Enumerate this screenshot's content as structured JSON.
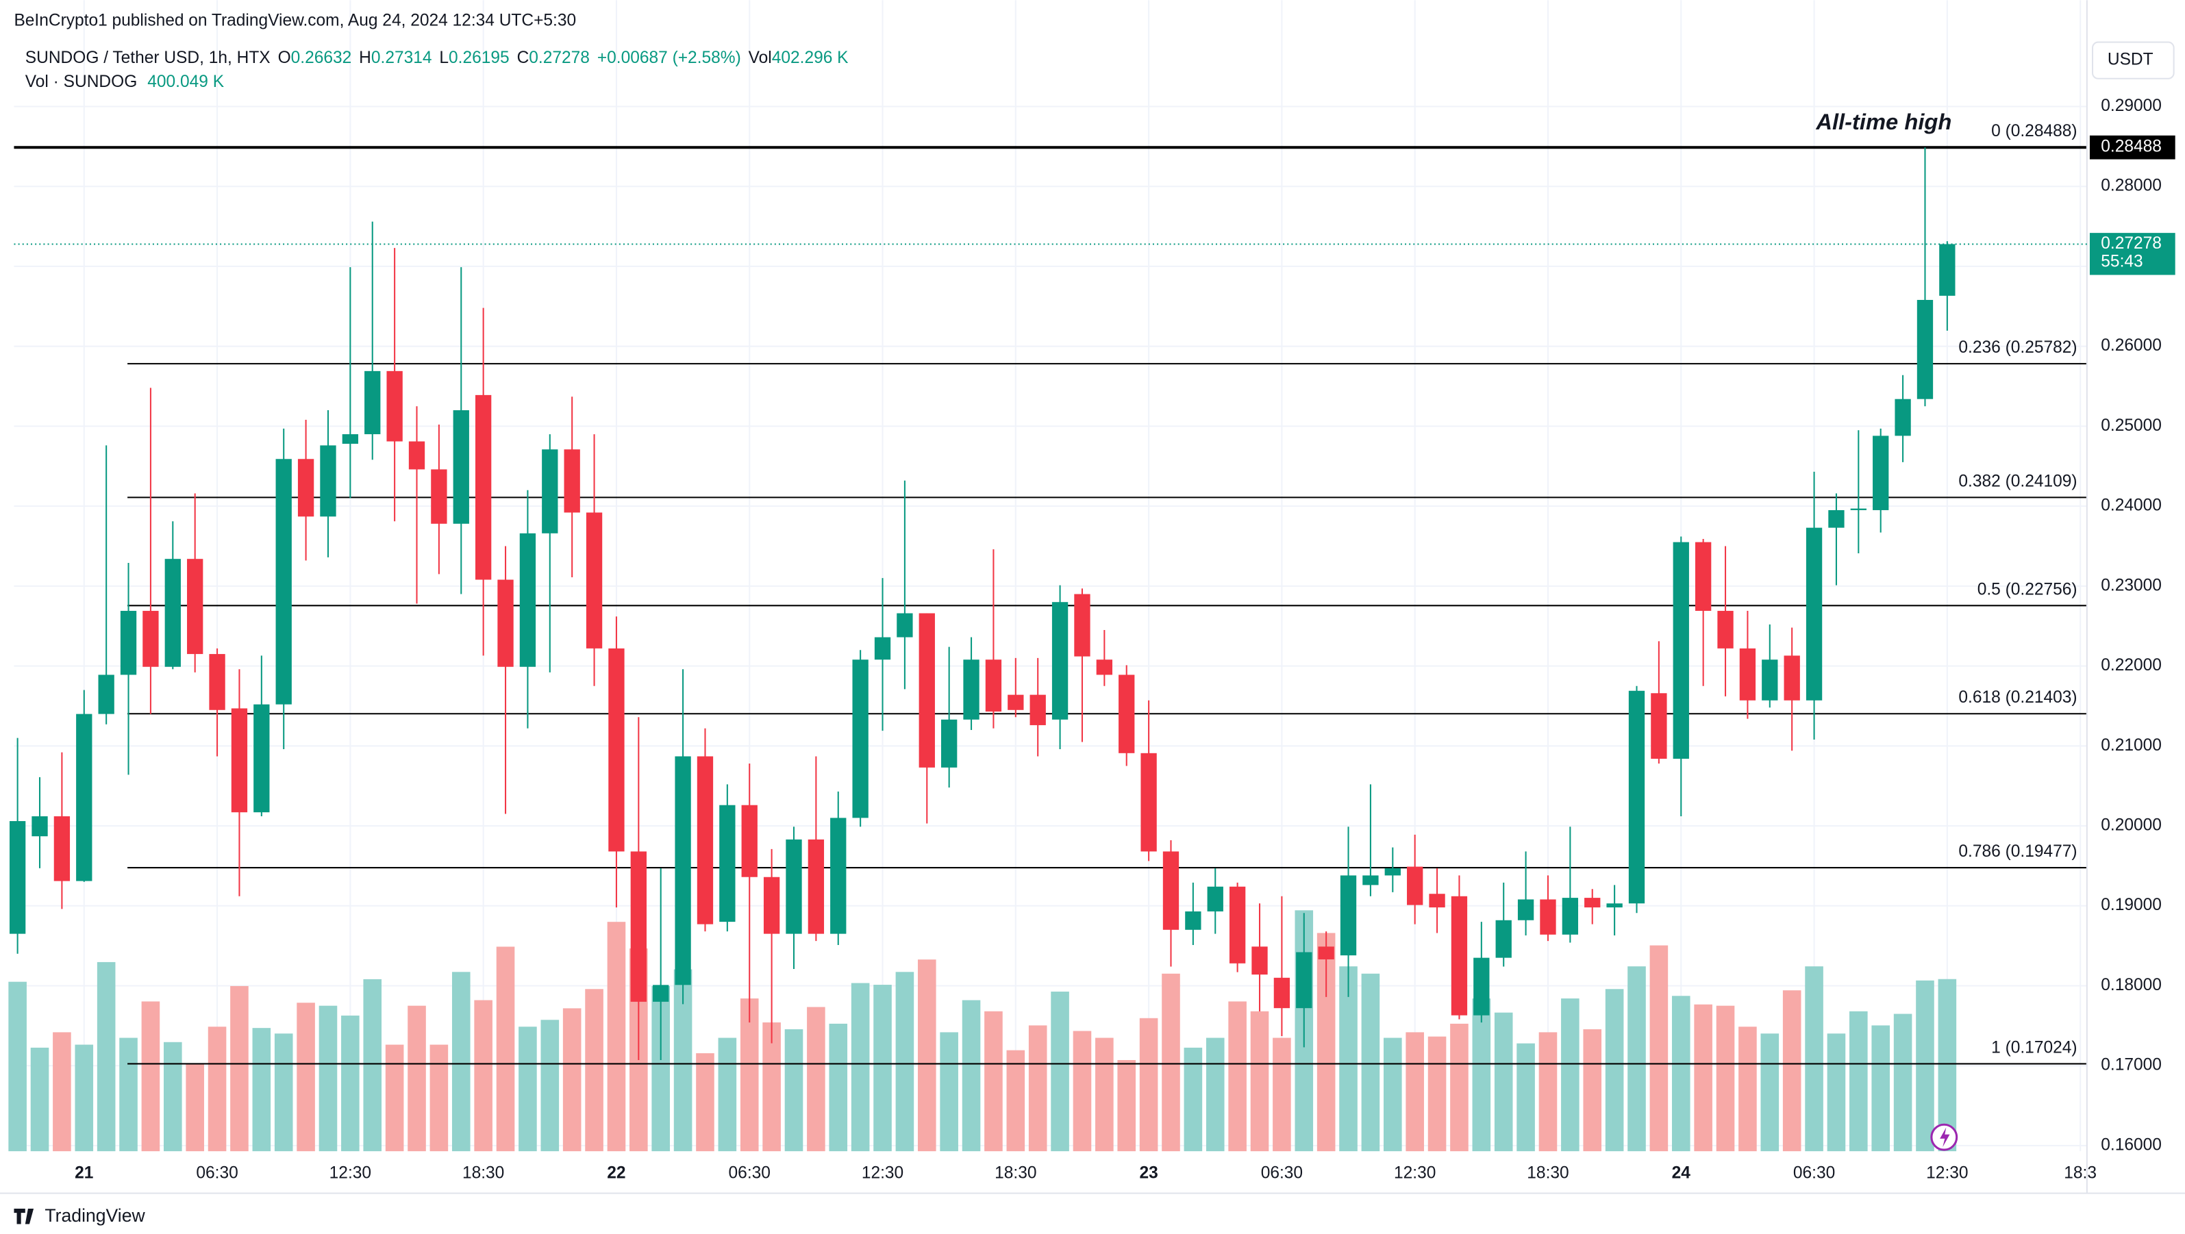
{
  "header": {
    "publisher": "BeInCrypto1 published on TradingView.com, Aug 24, 2024 12:34 UTC+5:30",
    "symbol": "SUNDOG / Tether USD, 1h, HTX",
    "o": "O",
    "h": "H",
    "l": "L",
    "c": "C",
    "change": "+0.00687 (+2.58%)",
    "vol": "Vol",
    "vol_value": "402.296 K",
    "indicator": "Vol · SUNDOG",
    "indicator_value": "400.049 K"
  },
  "currency": "USDT",
  "countdown": "55:43",
  "footer": "TradingView",
  "chart_data": {
    "type": "candlestick",
    "annotation": "All-time high",
    "open": [
      0.1865,
      0.1987,
      0.2012,
      0.1931,
      0.214,
      0.2189,
      0.2269,
      0.2199,
      0.2334,
      0.2215,
      0.2147,
      0.2017,
      0.2152,
      0.2459,
      0.2387,
      0.2478,
      0.249,
      0.2569,
      0.2481,
      0.2446,
      0.2378,
      0.2539,
      0.2308,
      0.2199,
      0.2366,
      0.2471,
      0.2392,
      0.2222,
      0.1968,
      0.178,
      0.1801,
      0.2087,
      0.188,
      0.2026,
      0.1936,
      0.1865,
      0.1983,
      0.1865,
      0.201,
      0.2208,
      0.2236,
      0.2266,
      0.2073,
      0.2133,
      0.2208,
      0.2164,
      0.2164,
      0.2133,
      0.229,
      0.2208,
      0.2189,
      0.2091,
      0.1968,
      0.187,
      0.1893,
      0.1924,
      0.1849,
      0.181,
      0.1772,
      0.1849,
      0.1838,
      0.1926,
      0.1938,
      0.1949,
      0.1915,
      0.1912,
      0.1763,
      0.1835,
      0.1882,
      0.1908,
      0.1864,
      0.191,
      0.1898,
      0.1903,
      0.2166,
      0.2084,
      0.2355,
      0.2269,
      0.2222,
      0.2157,
      0.2213,
      0.2157,
      0.2373,
      0.2395,
      0.2395,
      0.2488,
      0.2534,
      0.26632
    ],
    "high": [
      0.211,
      0.2061,
      0.2092,
      0.217,
      0.2476,
      0.2329,
      0.2548,
      0.2381,
      0.2416,
      0.2222,
      0.2196,
      0.2213,
      0.2497,
      0.2508,
      0.252,
      0.2699,
      0.2756,
      0.2723,
      0.2525,
      0.2502,
      0.2699,
      0.2648,
      0.235,
      0.242,
      0.249,
      0.2537,
      0.249,
      0.2262,
      0.2136,
      0.1947,
      0.2196,
      0.2122,
      0.2052,
      0.2078,
      0.1971,
      0.1999,
      0.2087,
      0.2043,
      0.222,
      0.231,
      0.2432,
      0.2266,
      0.2224,
      0.2236,
      0.2346,
      0.221,
      0.221,
      0.2301,
      0.2297,
      0.2245,
      0.2201,
      0.2157,
      0.1982,
      0.1929,
      0.1947,
      0.1929,
      0.1903,
      0.1912,
      0.1891,
      0.1868,
      0.1999,
      0.2052,
      0.1973,
      0.1989,
      0.1947,
      0.1938,
      0.188,
      0.1929,
      0.1968,
      0.1938,
      0.1999,
      0.1921,
      0.1926,
      0.2175,
      0.2231,
      0.2362,
      0.2359,
      0.235,
      0.2269,
      0.2252,
      0.2248,
      0.2443,
      0.2416,
      0.2495,
      0.2497,
      0.2564,
      0.28488,
      0.27314
    ],
    "low": [
      0.184,
      0.1947,
      0.1896,
      0.193,
      0.2127,
      0.2064,
      0.214,
      0.2196,
      0.2192,
      0.2087,
      0.1912,
      0.2012,
      0.2096,
      0.2332,
      0.2336,
      0.241,
      0.2458,
      0.2381,
      0.2278,
      0.2315,
      0.229,
      0.2213,
      0.2015,
      0.2122,
      0.2192,
      0.2311,
      0.2175,
      0.1898,
      0.1707,
      0.1707,
      0.1777,
      0.1868,
      0.1868,
      0.1754,
      0.1728,
      0.1821,
      0.1856,
      0.1851,
      0.1999,
      0.2119,
      0.2171,
      0.2003,
      0.2048,
      0.212,
      0.2122,
      0.2136,
      0.2087,
      0.2096,
      0.2105,
      0.2175,
      0.2075,
      0.1956,
      0.1824,
      0.1851,
      0.1865,
      0.1817,
      0.1768,
      0.1737,
      0.1723,
      0.1786,
      0.1786,
      0.1912,
      0.1917,
      0.1877,
      0.1866,
      0.1758,
      0.1754,
      0.1824,
      0.1863,
      0.1856,
      0.1854,
      0.1877,
      0.1863,
      0.1891,
      0.2078,
      0.2012,
      0.2175,
      0.2162,
      0.2134,
      0.2148,
      0.2094,
      0.2108,
      0.2301,
      0.2341,
      0.2367,
      0.2455,
      0.2525,
      0.26195
    ],
    "close": [
      0.2006,
      0.2012,
      0.1931,
      0.214,
      0.2189,
      0.2269,
      0.2199,
      0.2334,
      0.2215,
      0.2145,
      0.2017,
      0.2152,
      0.2459,
      0.2387,
      0.2476,
      0.249,
      0.2569,
      0.2481,
      0.2446,
      0.2378,
      0.252,
      0.2308,
      0.2199,
      0.2366,
      0.2471,
      0.2392,
      0.2222,
      0.1968,
      0.178,
      0.1801,
      0.2087,
      0.1877,
      0.2026,
      0.1936,
      0.1865,
      0.1983,
      0.1865,
      0.201,
      0.2208,
      0.2236,
      0.2266,
      0.2073,
      0.2133,
      0.2208,
      0.2143,
      0.2145,
      0.2126,
      0.228,
      0.2212,
      0.2189,
      0.2091,
      0.1968,
      0.187,
      0.1893,
      0.1924,
      0.1828,
      0.1814,
      0.1772,
      0.1842,
      0.1833,
      0.1938,
      0.1938,
      0.1947,
      0.1901,
      0.1898,
      0.1763,
      0.1835,
      0.1882,
      0.1908,
      0.1864,
      0.191,
      0.1898,
      0.1903,
      0.2169,
      0.2084,
      0.2355,
      0.2269,
      0.2222,
      0.2157,
      0.2208,
      0.2157,
      0.2373,
      0.2395,
      0.2397,
      0.2488,
      0.2534,
      0.2658,
      0.27278
    ],
    "volume": [
      396000,
      242000,
      278000,
      249000,
      442000,
      265000,
      350000,
      255000,
      203000,
      291000,
      386000,
      288000,
      275000,
      347000,
      340000,
      317000,
      402000,
      249000,
      340000,
      249000,
      419000,
      353000,
      478000,
      291000,
      307000,
      334000,
      379000,
      536000,
      474000,
      386000,
      425000,
      229000,
      265000,
      357000,
      301000,
      285000,
      337000,
      298000,
      393000,
      389000,
      419000,
      448000,
      278000,
      353000,
      327000,
      236000,
      294000,
      373000,
      281000,
      265000,
      213000,
      311000,
      415000,
      242000,
      265000,
      350000,
      327000,
      265000,
      563000,
      510000,
      432000,
      415000,
      265000,
      278000,
      268000,
      298000,
      357000,
      324000,
      252000,
      278000,
      357000,
      285000,
      379000,
      432000,
      481000,
      363000,
      343000,
      340000,
      291000,
      275000,
      376000,
      432000,
      275000,
      327000,
      294000,
      321000,
      399000,
      402296
    ],
    "colors": {
      "up": "#089981",
      "down": "#f23645",
      "up_volume": "#92d2cc",
      "down_volume": "#f7a9a7"
    },
    "xlim": [
      -0.16,
      93.3
    ],
    "xticks": [
      {
        "value": 3,
        "label": "21"
      },
      {
        "value": 9,
        "label": "06:30"
      },
      {
        "value": 15,
        "label": "12:30"
      },
      {
        "value": 21,
        "label": "18:30"
      },
      {
        "value": 27,
        "label": "22"
      },
      {
        "value": 33,
        "label": "06:30"
      },
      {
        "value": 39,
        "label": "12:30"
      },
      {
        "value": 45,
        "label": "18:30"
      },
      {
        "value": 51,
        "label": "23"
      },
      {
        "value": 57,
        "label": "06:30"
      },
      {
        "value": 63,
        "label": "12:30"
      },
      {
        "value": 69,
        "label": "18:30"
      },
      {
        "value": 75,
        "label": "24"
      },
      {
        "value": 81,
        "label": "06:30"
      },
      {
        "value": 87,
        "label": "12:30"
      },
      {
        "value": 93,
        "label": "18:3"
      }
    ],
    "ylim": [
      0.1593,
      0.3033
    ],
    "yticks": [
      {
        "value": 0.16,
        "label": "0.16000"
      },
      {
        "value": 0.17,
        "label": "0.17000"
      },
      {
        "value": 0.18,
        "label": "0.18000"
      },
      {
        "value": 0.19,
        "label": "0.19000"
      },
      {
        "value": 0.2,
        "label": "0.20000"
      },
      {
        "value": 0.21,
        "label": "0.21000"
      },
      {
        "value": 0.22,
        "label": "0.22000"
      },
      {
        "value": 0.23,
        "label": "0.23000"
      },
      {
        "value": 0.24,
        "label": "0.24000"
      },
      {
        "value": 0.25,
        "label": "0.25000"
      },
      {
        "value": 0.26,
        "label": "0.26000"
      },
      {
        "value": 0.27,
        "label": "0.27000"
      },
      {
        "value": 0.28,
        "label": "0.28000"
      },
      {
        "value": 0.29,
        "label": "0.29000"
      }
    ],
    "y2lim": [
      0,
      2690000
    ],
    "grid": true,
    "fib_levels": [
      {
        "label": "0 (0.28488)",
        "value": 0.28488
      },
      {
        "label": "0.236 (0.25782)",
        "value": 0.25782
      },
      {
        "label": "0.382 (0.24109)",
        "value": 0.24109
      },
      {
        "label": "0.5 (0.22756)",
        "value": 0.22756
      },
      {
        "label": "0.618 (0.21403)",
        "value": 0.21403
      },
      {
        "label": "0.786 (0.19477)",
        "value": 0.19477
      },
      {
        "label": "1 (0.17024)",
        "value": 0.17024
      }
    ]
  }
}
